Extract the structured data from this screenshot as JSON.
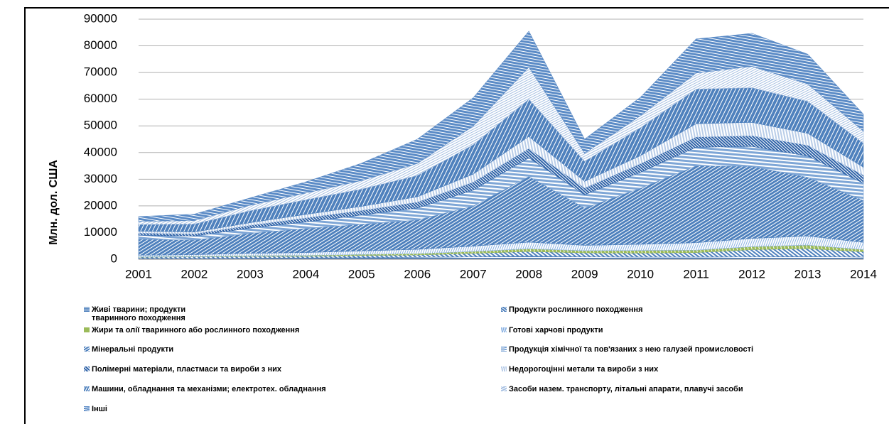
{
  "chart_data": {
    "type": "stacked_area",
    "y_label": "Млн. дол. США",
    "categories": [
      "2001",
      "2002",
      "2003",
      "2004",
      "2005",
      "2006",
      "2007",
      "2008",
      "2009",
      "2010",
      "2011",
      "2012",
      "2013",
      "2014"
    ],
    "ylim": [
      0,
      90000
    ],
    "yticks": [
      0,
      10000,
      20000,
      30000,
      40000,
      50000,
      60000,
      70000,
      80000,
      90000
    ],
    "grid": true,
    "series": [
      {
        "name": "Живі тварини; продукти тваринного походження",
        "color": "#4f81bd",
        "values": [
          300,
          300,
          400,
          500,
          600,
          700,
          900,
          1200,
          900,
          800,
          800,
          900,
          1000,
          800
        ]
      },
      {
        "name": "Продукти рослинного походження",
        "color": "#4f81bd",
        "values": [
          500,
          600,
          700,
          600,
          800,
          900,
          1300,
          1700,
          1500,
          1500,
          1700,
          2700,
          3000,
          2000
        ]
      },
      {
        "name": "Жири та олії тваринного або рослинного походження",
        "color": "#9bbb59",
        "values": [
          100,
          100,
          200,
          300,
          400,
          500,
          700,
          1000,
          800,
          1000,
          900,
          1100,
          1300,
          800
        ]
      },
      {
        "name": "Готові харчові продукти",
        "color": "#8eb4e3",
        "values": [
          600,
          700,
          900,
          1100,
          1300,
          1600,
          2000,
          2500,
          2000,
          2300,
          2800,
          3100,
          3400,
          2700
        ]
      },
      {
        "name": "Мінеральні продукти",
        "color": "#4f81bd",
        "values": [
          6000,
          5500,
          7500,
          9000,
          10000,
          11000,
          15000,
          24600,
          14000,
          21000,
          28800,
          27000,
          22000,
          15700
        ]
      },
      {
        "name": "Продукція хімічної та пов'язаних з нею галузей промисловості",
        "color": "#7ea6d6",
        "values": [
          1500,
          1500,
          2000,
          2500,
          3500,
          4500,
          6000,
          7000,
          5000,
          6000,
          7000,
          7500,
          8000,
          6500
        ]
      },
      {
        "name": "Полімерні матеріали, пластмаси та вироби з них",
        "color": "#2f63a8",
        "values": [
          800,
          800,
          1000,
          1500,
          1700,
          2200,
          3000,
          3500,
          2500,
          3200,
          3800,
          4000,
          4000,
          3000
        ]
      },
      {
        "name": "Недорогоцінні метали та вироби з них",
        "color": "#b9cde8",
        "values": [
          700,
          700,
          1000,
          1300,
          1500,
          2000,
          3000,
          4500,
          2500,
          3000,
          5000,
          5000,
          4500,
          3000
        ]
      },
      {
        "name": "Машини, обладнання та механізми; електротех. обладнання",
        "color": "#4f81bd",
        "values": [
          2500,
          3000,
          4500,
          5500,
          6500,
          8000,
          11000,
          14000,
          7500,
          10500,
          13000,
          13000,
          12000,
          9000
        ]
      },
      {
        "name": "Засоби назем. транспорту, літальні апарати, плавучі засоби",
        "color": "#a7c0e2",
        "values": [
          1200,
          1300,
          2000,
          2500,
          3200,
          4500,
          7000,
          12000,
          3000,
          4500,
          6000,
          8000,
          6500,
          4500
        ]
      },
      {
        "name": "Інші",
        "color": "#5b8bc6",
        "values": [
          1800,
          2400,
          2800,
          4200,
          6500,
          9100,
          10600,
          13500,
          5300,
          6900,
          12800,
          12400,
          11200,
          6400
        ]
      }
    ]
  }
}
